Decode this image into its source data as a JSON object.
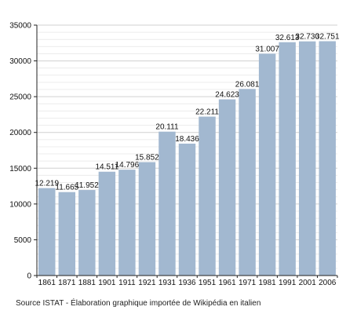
{
  "chart_data": {
    "type": "bar",
    "categories": [
      "1861",
      "1871",
      "1881",
      "1901",
      "1911",
      "1921",
      "1931",
      "1936",
      "1951",
      "1961",
      "1971",
      "1981",
      "1991",
      "2001",
      "2006"
    ],
    "values": [
      12219,
      11665,
      11952,
      14511,
      14796,
      15852,
      20111,
      18436,
      22211,
      24623,
      26081,
      31007,
      32613,
      32730,
      32751
    ],
    "value_labels": [
      "12.219",
      "11.665",
      "11.952",
      "14.511",
      "14.796",
      "15.852",
      "20.111",
      "18.436",
      "22.211",
      "24.623",
      "26.081",
      "31.007",
      "32.613",
      "32.730",
      "32.751"
    ],
    "title": "",
    "xlabel": "",
    "ylabel": "",
    "ylim": [
      0,
      35000
    ],
    "yticks": [
      0,
      5000,
      10000,
      15000,
      20000,
      25000,
      30000,
      35000
    ],
    "ytick_labels": [
      "0",
      "5000",
      "10000",
      "15000",
      "20000",
      "25000",
      "30000",
      "35000"
    ],
    "grid": true,
    "bar_color": "#a2b8d0"
  },
  "source_text": "Source ISTAT - Élaboration graphique importée de Wikipédia en italien"
}
